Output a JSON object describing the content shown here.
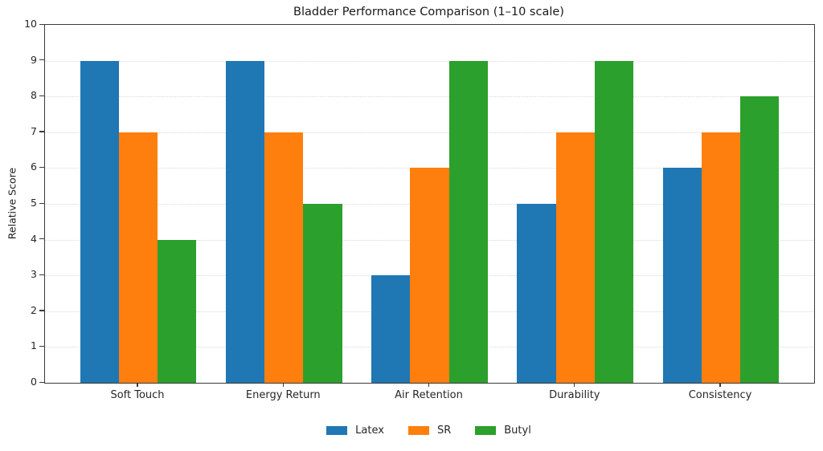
{
  "chart_data": {
    "type": "bar",
    "title": "Bladder Performance Comparison (1–10 scale)",
    "xlabel": "",
    "ylabel": "Relative Score",
    "ylim": [
      0,
      10
    ],
    "yticks": [
      0,
      1,
      2,
      3,
      4,
      5,
      6,
      7,
      8,
      9,
      10
    ],
    "grid": "horizontal-dotted",
    "legend_position": "bottom-center",
    "categories": [
      "Soft Touch",
      "Energy Return",
      "Air Retention",
      "Durability",
      "Consistency"
    ],
    "series": [
      {
        "name": "Latex",
        "color": "#1f77b4",
        "values": [
          9,
          9,
          3,
          5,
          6
        ]
      },
      {
        "name": "SR",
        "color": "#ff7f0e",
        "values": [
          7,
          7,
          6,
          7,
          7
        ]
      },
      {
        "name": "Butyl",
        "color": "#2ca02c",
        "values": [
          4,
          5,
          9,
          9,
          8
        ]
      }
    ]
  }
}
